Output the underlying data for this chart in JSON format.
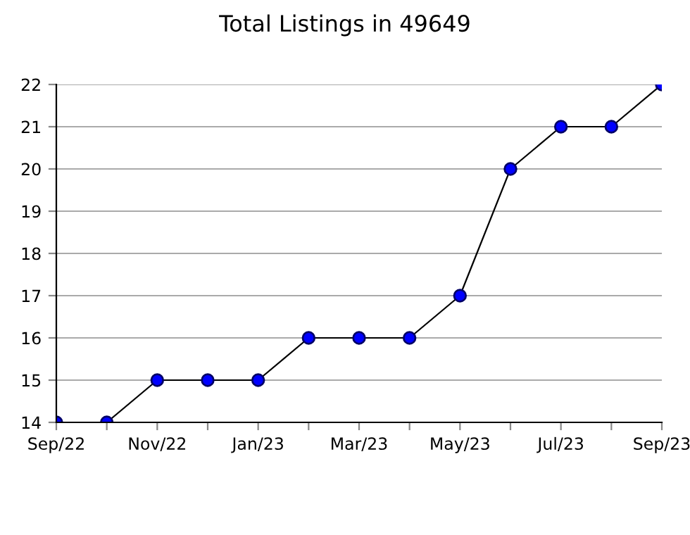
{
  "chart_data": {
    "type": "line",
    "title": "Total Listings in 49649",
    "categories": [
      "Sep/22",
      null,
      "Nov/22",
      null,
      "Jan/23",
      null,
      "Mar/23",
      null,
      "May/23",
      null,
      "Jul/23",
      null,
      "Sep/23"
    ],
    "series": [
      {
        "color": "#0000ff",
        "values": [
          14,
          14,
          15,
          15,
          15,
          16,
          16,
          16,
          17,
          20,
          21,
          21,
          22
        ]
      }
    ],
    "ylim": [
      14,
      22
    ],
    "yticks": [
      14,
      15,
      16,
      17,
      18,
      19,
      20,
      21,
      22
    ],
    "grid": "y",
    "marker": "circle",
    "line_style": "solid"
  }
}
